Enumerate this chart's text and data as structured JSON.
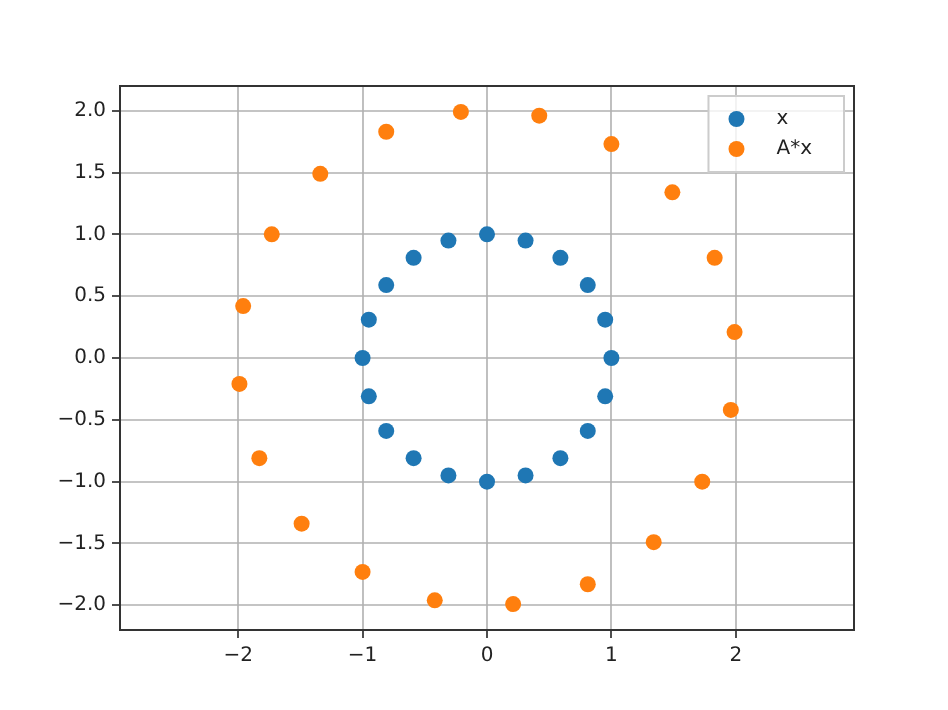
{
  "chart_data": {
    "type": "scatter",
    "marker": "circle",
    "grid": true,
    "legend": "top right",
    "xlim": [
      -2.95,
      2.95
    ],
    "ylim": [
      -2.2,
      2.2
    ],
    "xticks": [
      {
        "value": -2,
        "label": "−2"
      },
      {
        "value": -1,
        "label": "−1"
      },
      {
        "value": 0,
        "label": "0"
      },
      {
        "value": 1,
        "label": "1"
      },
      {
        "value": 2,
        "label": "2"
      }
    ],
    "yticks": [
      {
        "value": -2,
        "label": "−2.0"
      },
      {
        "value": -1.5,
        "label": "−1.5"
      },
      {
        "value": -1,
        "label": "−1.0"
      },
      {
        "value": -0.5,
        "label": "−0.5"
      },
      {
        "value": 0,
        "label": "0.0"
      },
      {
        "value": 0.5,
        "label": "0.5"
      },
      {
        "value": 1,
        "label": "1.0"
      },
      {
        "value": 1.5,
        "label": "1.5"
      },
      {
        "value": 2,
        "label": "2.0"
      }
    ],
    "series": [
      {
        "name": "x",
        "color": "#1f77b4",
        "x": [
          1,
          0.95,
          0.81,
          0.59,
          0.31,
          0,
          -0.31,
          -0.59,
          -0.81,
          -0.95,
          -1,
          -0.95,
          -0.81,
          -0.59,
          -0.31,
          0,
          0.31,
          0.59,
          0.81,
          0.95
        ],
        "values": [
          0,
          0.31,
          0.59,
          0.81,
          0.95,
          1,
          0.95,
          0.81,
          0.59,
          0.31,
          0,
          -0.31,
          -0.59,
          -0.81,
          -0.95,
          -1,
          -0.95,
          -0.81,
          -0.59,
          -0.31
        ]
      },
      {
        "name": "A*x",
        "color": "#ff7f0e",
        "x": [
          1.99,
          1.83,
          1.49,
          1.0,
          0.42,
          -0.21,
          -0.81,
          -1.34,
          -1.73,
          -1.96,
          -1.99,
          -1.83,
          -1.49,
          -1.0,
          -0.42,
          0.21,
          0.81,
          1.34,
          1.73,
          1.96
        ],
        "values": [
          0.21,
          0.81,
          1.34,
          1.73,
          1.96,
          1.99,
          1.83,
          1.49,
          1.0,
          0.42,
          -0.21,
          -0.81,
          -1.34,
          -1.73,
          -1.96,
          -1.99,
          -1.83,
          -1.49,
          -1.0,
          -0.42
        ]
      }
    ]
  }
}
